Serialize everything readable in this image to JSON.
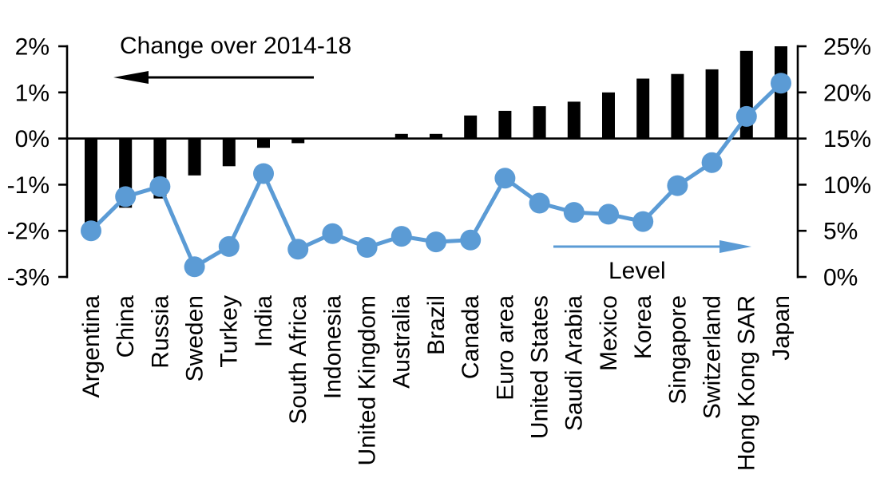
{
  "chart_data": {
    "type": "combo_bar_line",
    "categories": [
      "Argentina",
      "China",
      "Russia",
      "Sweden",
      "Turkey",
      "India",
      "South Africa",
      "Indonesia",
      "United Kingdom",
      "Australia",
      "Brazil",
      "Canada",
      "Euro area",
      "United States",
      "Saudi Arabia",
      "Mexico",
      "Korea",
      "Singapore",
      "Switzerland",
      "Hong Kong SAR",
      "Japan"
    ],
    "series": [
      {
        "name": "Change over 2014-18",
        "type": "bar",
        "axis": "left",
        "color": "#000000",
        "values": [
          -1.85,
          -1.5,
          -1.3,
          -0.8,
          -0.6,
          -0.2,
          -0.1,
          0,
          0,
          0.1,
          0.1,
          0.5,
          0.6,
          0.7,
          0.8,
          1.0,
          1.3,
          1.4,
          1.5,
          1.9,
          2.0
        ]
      },
      {
        "name": "Level",
        "type": "line",
        "axis": "right",
        "color": "#5B9BD5",
        "values": [
          5.0,
          8.7,
          9.8,
          1.1,
          3.3,
          11.2,
          3.0,
          4.7,
          3.2,
          4.4,
          3.8,
          4.0,
          10.7,
          8.0,
          7.0,
          6.8,
          6.0,
          9.9,
          12.4,
          17.4,
          21.0
        ]
      }
    ],
    "left_axis": {
      "min": -3,
      "max": 2,
      "tick_step": 1,
      "tick_labels": [
        "2%",
        "1%",
        "0%",
        "-1%",
        "-2%",
        "-3%"
      ]
    },
    "right_axis": {
      "min": 0,
      "max": 25,
      "tick_step": 5,
      "tick_labels": [
        "25%",
        "20%",
        "15%",
        "10%",
        "5%",
        "0%"
      ]
    },
    "annotations": {
      "bar_series_label": "Change over 2014-18",
      "line_series_label": "Level"
    },
    "grid": false,
    "legend_position": "in-plot arrow annotations",
    "background": "#FFFFFF"
  },
  "colors": {
    "bar": "#000000",
    "line": "#5B9BD5",
    "axis": "#000000",
    "text": "#000000",
    "background": "#FFFFFF"
  }
}
